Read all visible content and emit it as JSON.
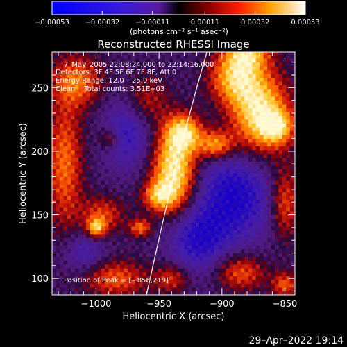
{
  "chart_data": {
    "type": "heatmap",
    "title": "Reconstructed RHESSI Image",
    "xlabel": "Heliocentric X (arcsec)",
    "ylabel": "Heliocentric Y (arcsec)",
    "xlim": [
      -1035,
      -842
    ],
    "ylim": [
      87,
      278
    ],
    "x_ticks": [
      -1000,
      -950,
      -900,
      -850
    ],
    "x_tick_labels": [
      "−1000",
      "−950",
      "−900",
      "−850"
    ],
    "y_ticks": [
      100,
      150,
      200,
      250
    ],
    "y_tick_labels": [
      "100",
      "150",
      "200",
      "250"
    ],
    "colorbar": {
      "range": [
        -0.00053,
        0.00053
      ],
      "ticks": [
        -0.00053,
        -0.00032,
        -0.00011,
        0.00011,
        0.00032,
        0.00053
      ],
      "tick_labels": [
        "−0.00053",
        "−0.00032",
        "−0.00011",
        "0.00011",
        "0.00032",
        "0.00053"
      ],
      "units_label": "(photons cm⁻² s⁻¹ asec⁻²)"
    },
    "annotations": {
      "time_range": "7–May–2005 22:08:24.000 to 22:14:16.000",
      "detectors": "Detectors: 3F 4F 5F 6F 7F 8F, Att 0",
      "energy_range": "Energy Range: 12.0 – 25.0 keV",
      "method_counts": "Clean    Total counts: 3.51E+03",
      "peak_position": "Position of Peak = [−856,219]"
    },
    "peak": {
      "x": -856,
      "y": 219
    },
    "limb_arc": [
      [
        -960,
        87
      ],
      [
        -948,
        140
      ],
      [
        -935,
        195
      ],
      [
        -920,
        250
      ],
      [
        -912,
        278
      ]
    ],
    "sources": [
      {
        "x": -938,
        "y": 185,
        "sx": 12,
        "sy": 22,
        "amp": 1.0
      },
      {
        "x": -930,
        "y": 215,
        "sx": 10,
        "sy": 10,
        "amp": 0.75
      },
      {
        "x": -950,
        "y": 165,
        "sx": 9,
        "sy": 8,
        "amp": 0.6
      },
      {
        "x": -870,
        "y": 230,
        "sx": 16,
        "sy": 22,
        "amp": 0.95
      },
      {
        "x": -856,
        "y": 219,
        "sx": 9,
        "sy": 9,
        "amp": 0.6
      },
      {
        "x": -905,
        "y": 205,
        "sx": 10,
        "sy": 8,
        "amp": 0.7
      },
      {
        "x": -890,
        "y": 258,
        "sx": 14,
        "sy": 14,
        "amp": 0.7
      },
      {
        "x": -880,
        "y": 278,
        "sx": 12,
        "sy": 10,
        "amp": 0.7
      },
      {
        "x": -1025,
        "y": 190,
        "sx": 10,
        "sy": 35,
        "amp": 0.55
      },
      {
        "x": -1015,
        "y": 255,
        "sx": 14,
        "sy": 14,
        "amp": 0.55
      },
      {
        "x": -995,
        "y": 150,
        "sx": 12,
        "sy": 10,
        "amp": 0.45
      },
      {
        "x": -960,
        "y": 240,
        "sx": 12,
        "sy": 14,
        "amp": 0.35
      },
      {
        "x": -985,
        "y": 100,
        "sx": 18,
        "sy": 10,
        "amp": 0.5
      },
      {
        "x": -1000,
        "y": 140,
        "sx": 5,
        "sy": 5,
        "amp": 0.7
      },
      {
        "x": -965,
        "y": 140,
        "sx": 6,
        "sy": 5,
        "amp": 0.55
      },
      {
        "x": -940,
        "y": 100,
        "sx": 10,
        "sy": 8,
        "amp": 0.4
      },
      {
        "x": -885,
        "y": 105,
        "sx": 14,
        "sy": 10,
        "amp": 0.5
      },
      {
        "x": -850,
        "y": 160,
        "sx": 8,
        "sy": 20,
        "amp": 0.5
      },
      {
        "x": -850,
        "y": 95,
        "sx": 7,
        "sy": 7,
        "amp": 0.5
      },
      {
        "x": -990,
        "y": 210,
        "sx": 6,
        "sy": 6,
        "amp": 0.35
      }
    ],
    "negative_regions": [
      {
        "x": -890,
        "y": 165,
        "sx": 22,
        "sy": 26,
        "amp": 0.55
      },
      {
        "x": -975,
        "y": 215,
        "sx": 14,
        "sy": 20,
        "amp": 0.4
      },
      {
        "x": -920,
        "y": 130,
        "sx": 16,
        "sy": 18,
        "amp": 0.45
      },
      {
        "x": -1010,
        "y": 120,
        "sx": 12,
        "sy": 12,
        "amp": 0.3
      }
    ]
  },
  "footer": {
    "timestamp": "29–Apr–2022 19:14"
  }
}
